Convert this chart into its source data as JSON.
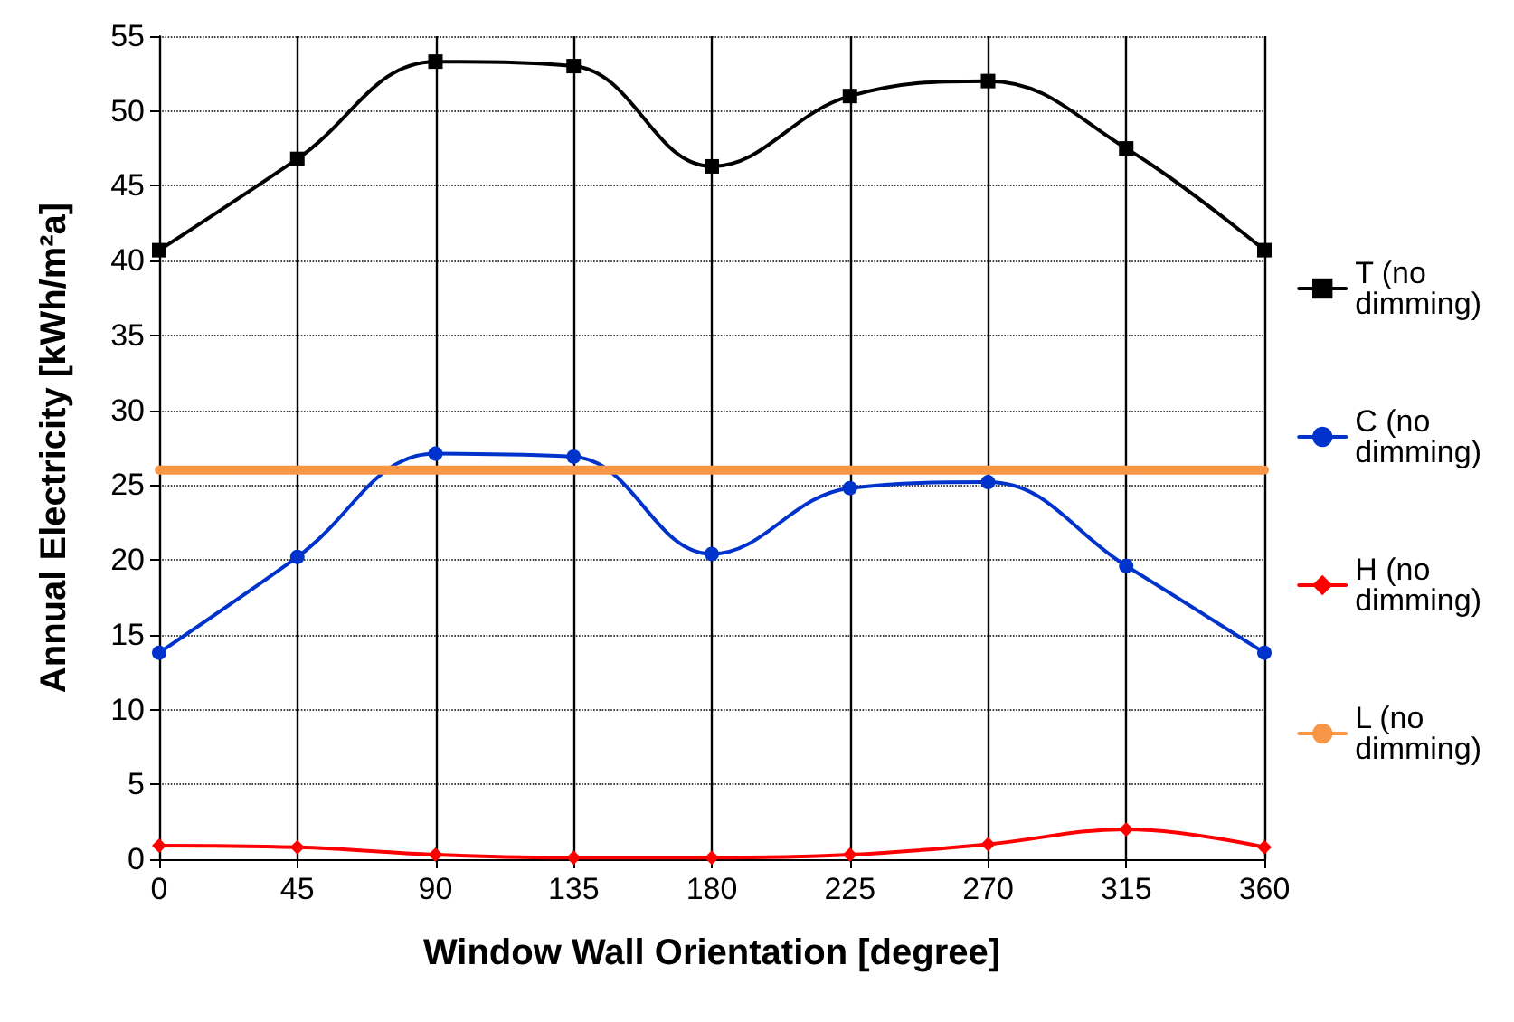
{
  "chart_data": {
    "type": "line",
    "xlabel": "Window Wall Orientation [degree]",
    "ylabel": "Annual Electricity [kWh/m²a]",
    "x": [
      0,
      45,
      90,
      135,
      180,
      225,
      270,
      315,
      360
    ],
    "xlim": [
      0,
      360
    ],
    "xticks": [
      0,
      45,
      90,
      135,
      180,
      225,
      270,
      315,
      360
    ],
    "ylim": [
      0,
      55
    ],
    "yticks": [
      0,
      5,
      10,
      15,
      20,
      25,
      30,
      35,
      40,
      45,
      50,
      55
    ],
    "grid": true,
    "legend": "right",
    "line_style": "solid",
    "series": [
      {
        "name": "T (no dimming)",
        "color": "#000000",
        "marker": "square",
        "values": [
          40.7,
          46.8,
          53.3,
          53.0,
          46.3,
          51.0,
          52.0,
          47.5,
          40.7
        ]
      },
      {
        "name": "C (no dimming)",
        "color": "#0033cc",
        "marker": "circle",
        "values": [
          13.8,
          20.2,
          27.1,
          26.9,
          20.4,
          24.8,
          25.2,
          19.6,
          13.8
        ]
      },
      {
        "name": "H (no dimming)",
        "color": "#ff0000",
        "marker": "diamond",
        "values": [
          0.9,
          0.8,
          0.3,
          0.1,
          0.1,
          0.3,
          1.0,
          2.0,
          0.8
        ]
      },
      {
        "name": "L (no dimming)",
        "color": "#f79646",
        "marker": "none",
        "values": [
          26,
          26,
          26,
          26,
          26,
          26,
          26,
          26,
          26
        ]
      }
    ]
  }
}
